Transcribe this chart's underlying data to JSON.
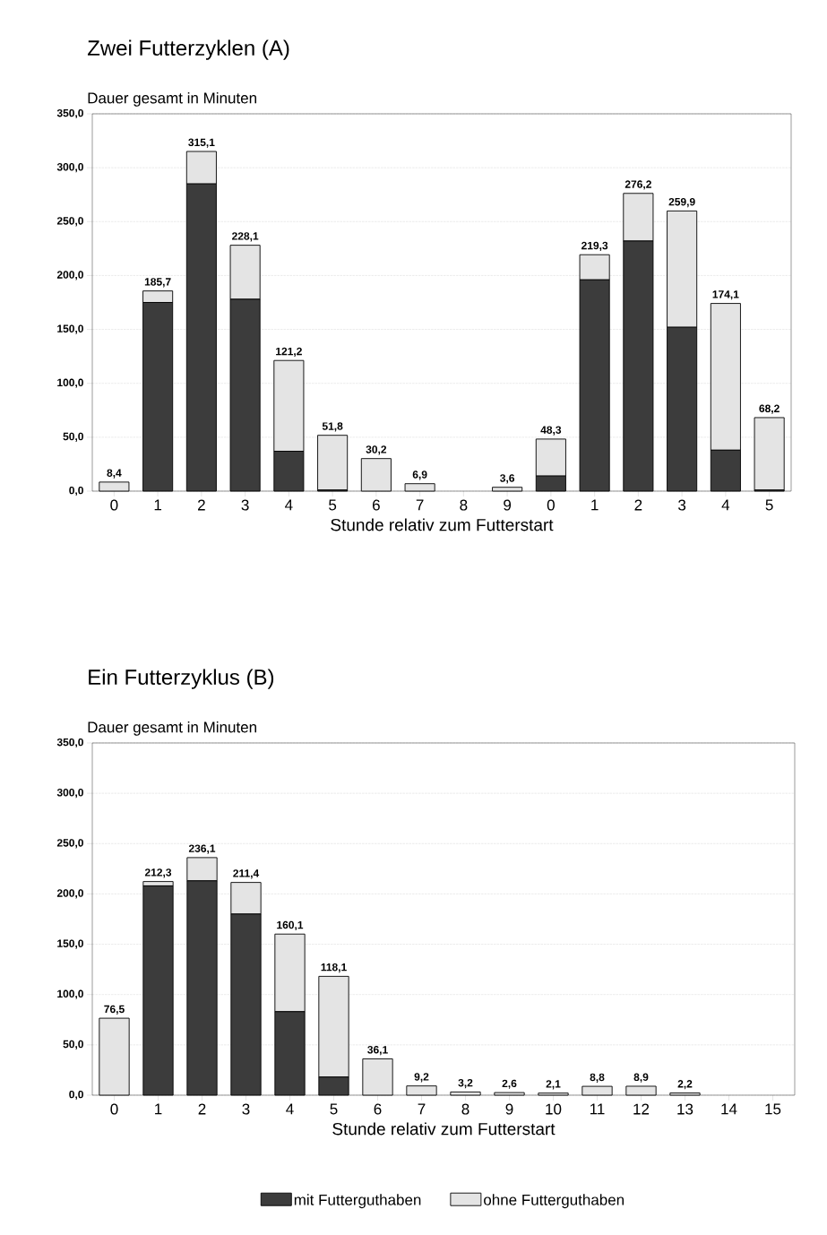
{
  "chart_data": [
    {
      "type": "bar",
      "title": "Zwei Futterzyklen (A)",
      "ylabel": "Dauer gesamt in Minuten",
      "xlabel": "Stunde relativ zum Futterstart",
      "categories": [
        "0",
        "1",
        "2",
        "3",
        "4",
        "5",
        "6",
        "7",
        "8",
        "9",
        "0",
        "1",
        "2",
        "3",
        "4",
        "5"
      ],
      "stacked": true,
      "grid": "y",
      "series": [
        {
          "color": "#3c3c3c",
          "values": [
            0,
            175,
            285,
            178,
            37,
            1,
            0,
            0,
            null,
            0,
            14,
            196,
            232,
            152,
            38,
            1
          ]
        },
        {
          "color": "#e4e4e4",
          "values": [
            8.4,
            10.7,
            30.1,
            50.1,
            84.2,
            50.8,
            30.2,
            6.9,
            null,
            3.6,
            34.3,
            23.3,
            44.2,
            107.9,
            136.1,
            67.2
          ]
        }
      ],
      "totals": [
        "8,4",
        "185,7",
        "315,1",
        "228,1",
        "121,2",
        "51,8",
        "30,2",
        "6,9",
        null,
        "3,6",
        "48,3",
        "219,3",
        "276,2",
        "259,9",
        "174,1",
        "68,2"
      ],
      "ylim": [
        0,
        350
      ],
      "yticks": [
        {
          "value": 0,
          "label": "0,0"
        },
        {
          "value": 50,
          "label": "50,0"
        },
        {
          "value": 100,
          "label": "100,0"
        },
        {
          "value": 150,
          "label": "150,0"
        },
        {
          "value": 200,
          "label": "200,0"
        },
        {
          "value": 250,
          "label": "250,0"
        },
        {
          "value": 300,
          "label": "300,0"
        },
        {
          "value": 350,
          "label": "350,0"
        }
      ]
    },
    {
      "type": "bar",
      "title": "Ein Futterzyklus (B)",
      "ylabel": "Dauer gesamt in Minuten",
      "xlabel": "Stunde relativ zum Futterstart",
      "categories": [
        "0",
        "1",
        "2",
        "3",
        "4",
        "5",
        "6",
        "7",
        "8",
        "9",
        "10",
        "11",
        "12",
        "13",
        "14",
        "15"
      ],
      "stacked": true,
      "grid": "y",
      "legend": "bottom",
      "series": [
        {
          "name": "mit Futterguthaben",
          "color": "#3c3c3c",
          "values": [
            0,
            208,
            213,
            180,
            83,
            18,
            0,
            0,
            0,
            0,
            0,
            0,
            0,
            0,
            null,
            null
          ]
        },
        {
          "name": "ohne Futterguthaben",
          "color": "#e4e4e4",
          "values": [
            76.5,
            4.3,
            23.1,
            31.4,
            77.1,
            100.1,
            36.1,
            9.2,
            3.2,
            2.6,
            2.1,
            8.8,
            8.9,
            2.2,
            null,
            null
          ]
        }
      ],
      "totals": [
        "76,5",
        "212,3",
        "236,1",
        "211,4",
        "160,1",
        "118,1",
        "36,1",
        "9,2",
        "3,2",
        "2,6",
        "2,1",
        "8,8",
        "8,9",
        "2,2",
        null,
        null
      ],
      "ylim": [
        0,
        350
      ],
      "yticks": [
        {
          "value": 0,
          "label": "0,0"
        },
        {
          "value": 50,
          "label": "50,0"
        },
        {
          "value": 100,
          "label": "100,0"
        },
        {
          "value": 150,
          "label": "150,0"
        },
        {
          "value": 200,
          "label": "200,0"
        },
        {
          "value": 250,
          "label": "250,0"
        },
        {
          "value": 300,
          "label": "300,0"
        },
        {
          "value": 350,
          "label": "350,0"
        }
      ]
    }
  ]
}
